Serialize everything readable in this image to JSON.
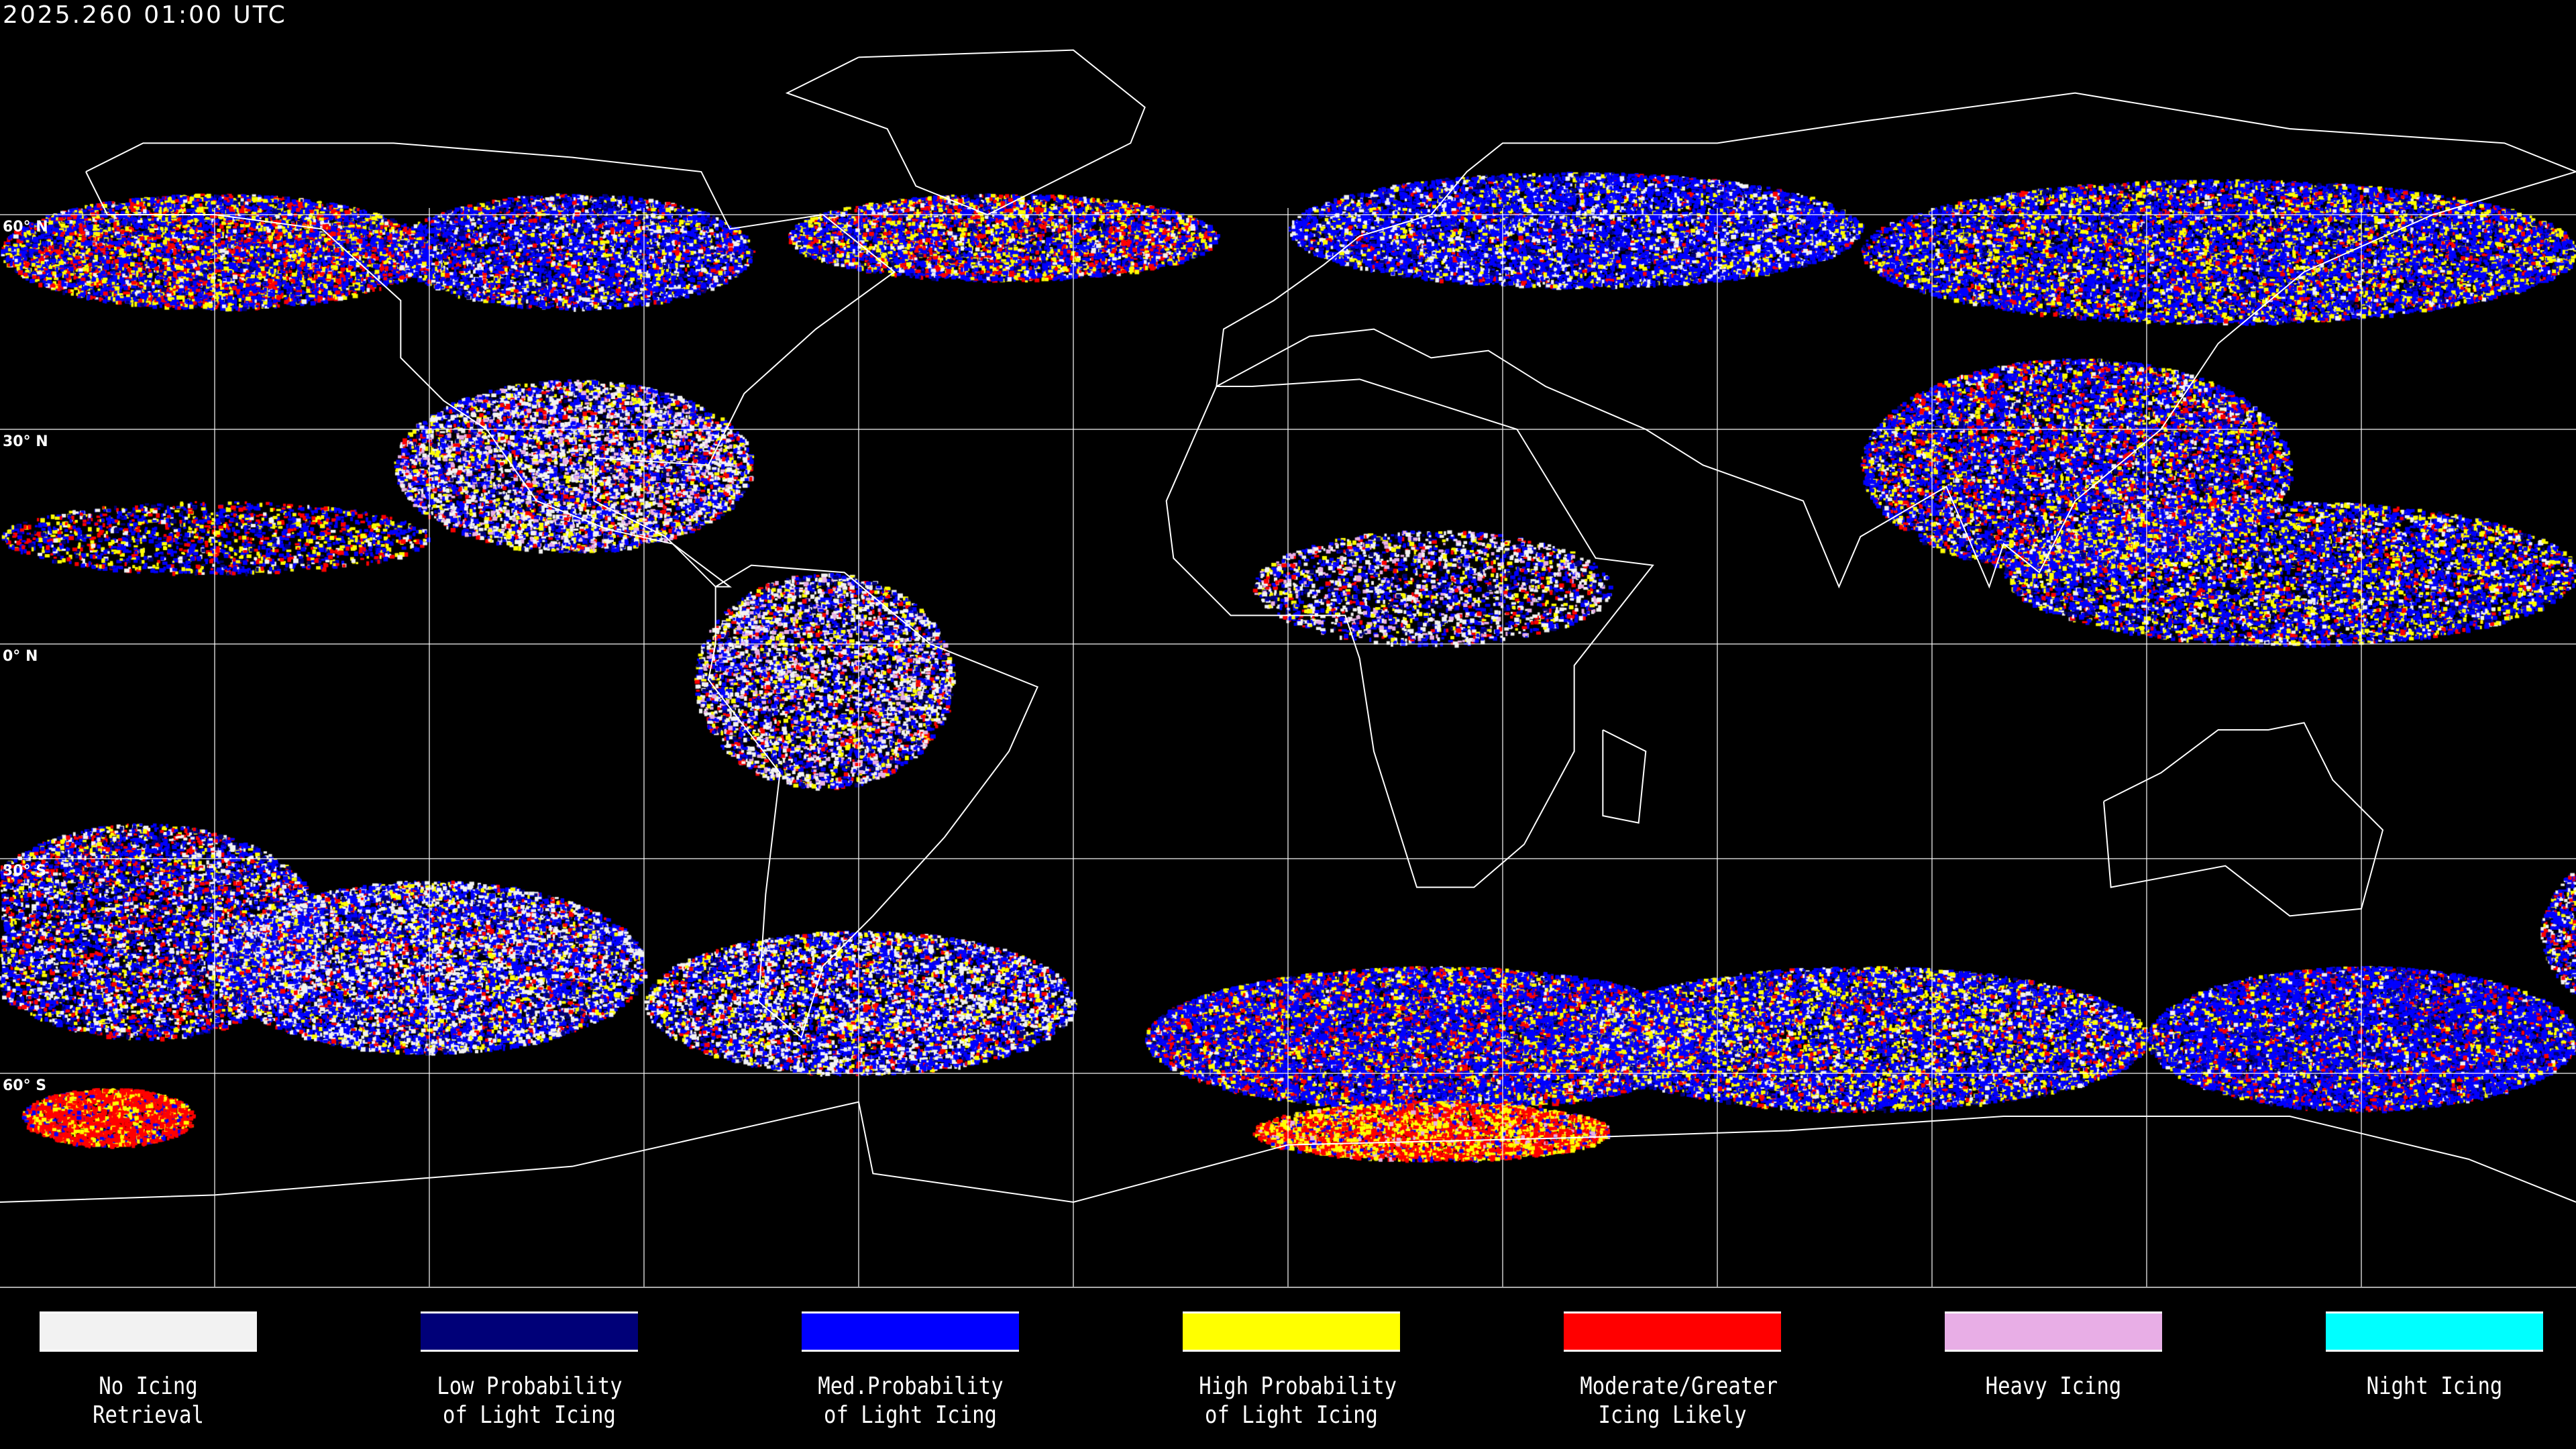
{
  "header": {
    "timestamp": "2025.260 01:00 UTC"
  },
  "map": {
    "projection": "equirectangular",
    "grid_spacing_degrees": 30,
    "lat_labels": [
      "60° N",
      "30° N",
      "0° N",
      "30° S",
      "60° S"
    ],
    "background": "#000000",
    "grid_color": "#ffffff",
    "coastline_color": "#ffffff"
  },
  "legend": [
    {
      "line1": "No Icing",
      "line2": "Retrieval",
      "color": "#f2f2f2"
    },
    {
      "line1": "Low Probability",
      "line2": "of Light Icing",
      "color": "#000078"
    },
    {
      "line1": "Med.Probability",
      "line2": "of Light Icing",
      "color": "#0000ff"
    },
    {
      "line1": "High Probability",
      "line2": "of Light Icing",
      "color": "#ffff00"
    },
    {
      "line1": "Moderate/Greater",
      "line2": "Icing Likely",
      "color": "#ff0000"
    },
    {
      "line1": "Heavy Icing",
      "line2": "",
      "color": "#e8aee6"
    },
    {
      "line1": "Night Icing",
      "line2": "",
      "color": "#00ffff"
    }
  ]
}
